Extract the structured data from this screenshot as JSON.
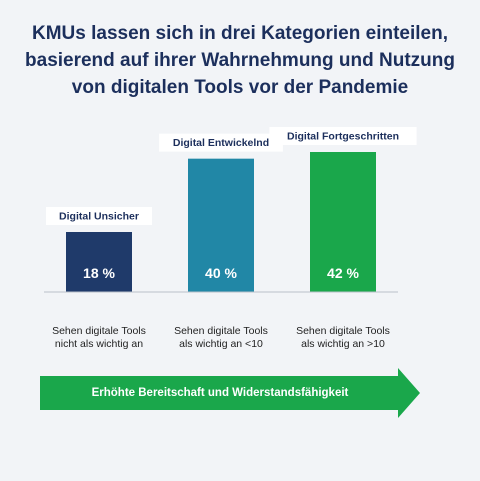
{
  "title_lines": [
    "KMUs lassen sich in drei Kategorien einteilen,",
    "basierend auf ihrer Wahrnehmung und Nutzung",
    "von digitalen Tools vor der Pandemie"
  ],
  "chart_data": {
    "type": "bar",
    "categories": [
      "Digital Unsicher",
      "Digital Entwickelnd",
      "Digital Fortgeschritten"
    ],
    "values": [
      18,
      40,
      42
    ],
    "value_labels": [
      "18 %",
      "40 %",
      "42 %"
    ],
    "descriptions": [
      "Sehen digitale Tools nicht als wichtig an",
      "Sehen digitale Tools als wichtig an <10",
      "Sehen digitale Tools als wichtig an >10"
    ],
    "colors": [
      "#1f3a6a",
      "#2187a6",
      "#1aa74b"
    ],
    "ylim": [
      0,
      42
    ],
    "grid": false,
    "legend": "none"
  },
  "arrow": {
    "label": "Erhöhte Bereitschaft und Widerstandsfähigkeit",
    "color": "#1aa74b"
  }
}
